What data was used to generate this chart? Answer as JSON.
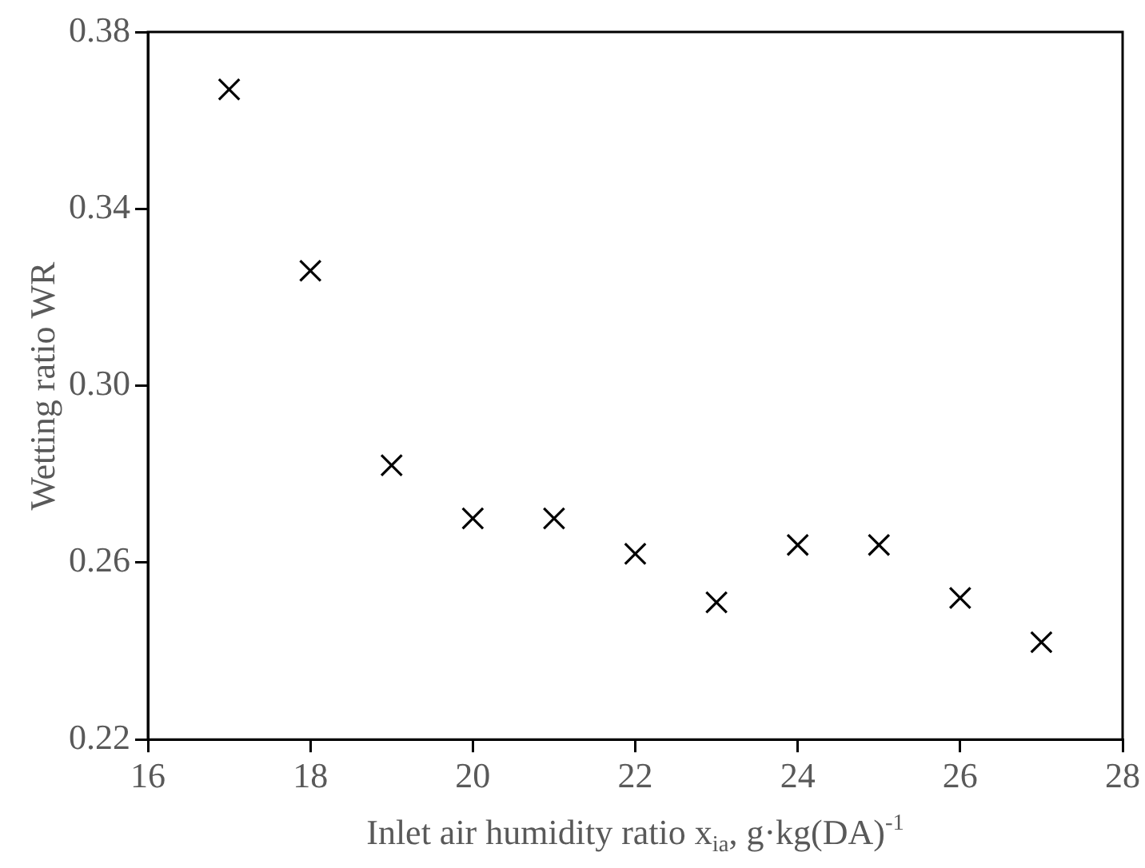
{
  "chart_data": {
    "type": "scatter",
    "xlabel": "Inlet air humidity ratio x$_{ia}$, g·kg(DA)$^{-1}$",
    "ylabel": "Wetting ratio WR",
    "x": [
      17,
      18,
      19,
      20,
      21,
      22,
      23,
      24,
      25,
      26,
      27
    ],
    "series": [
      {
        "color": "#000000",
        "values": [
          0.367,
          0.326,
          0.282,
          0.27,
          0.27,
          0.262,
          0.251,
          0.264,
          0.264,
          0.252,
          0.242
        ]
      }
    ],
    "xlim": [
      16,
      28
    ],
    "xticks": [
      16,
      18,
      20,
      22,
      24,
      26,
      28
    ],
    "ylim": [
      0.22,
      0.38
    ],
    "yticks": [
      {
        "value": 0.22,
        "label": "0.22"
      },
      {
        "value": 0.26,
        "label": "0.26"
      },
      {
        "value": 0.3,
        "label": "0.30"
      },
      {
        "value": 0.34,
        "label": "0.34"
      },
      {
        "value": 0.38,
        "label": "0.38"
      }
    ],
    "grid": false,
    "legend": false,
    "marker": "cross"
  }
}
